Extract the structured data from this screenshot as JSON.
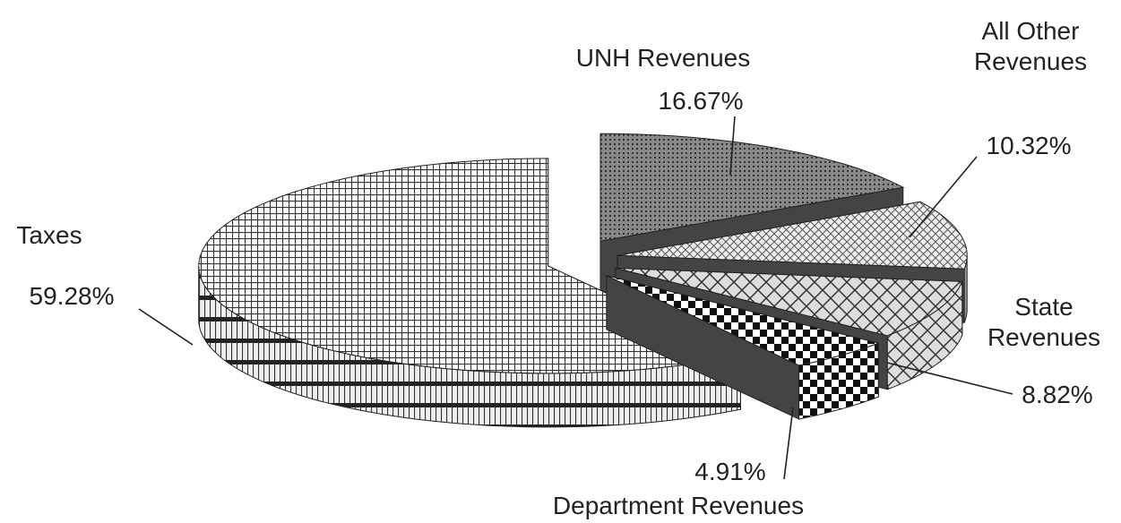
{
  "chart_data": {
    "type": "pie",
    "categories": [
      "UNH Revenues",
      "All Other Revenues",
      "State Revenues",
      "Department Revenues",
      "Taxes"
    ],
    "values": [
      16.67,
      10.32,
      8.82,
      4.91,
      59.28
    ],
    "value_labels": [
      "16.67%",
      "10.32%",
      "8.82%",
      "4.91%",
      "59.28%"
    ]
  }
}
